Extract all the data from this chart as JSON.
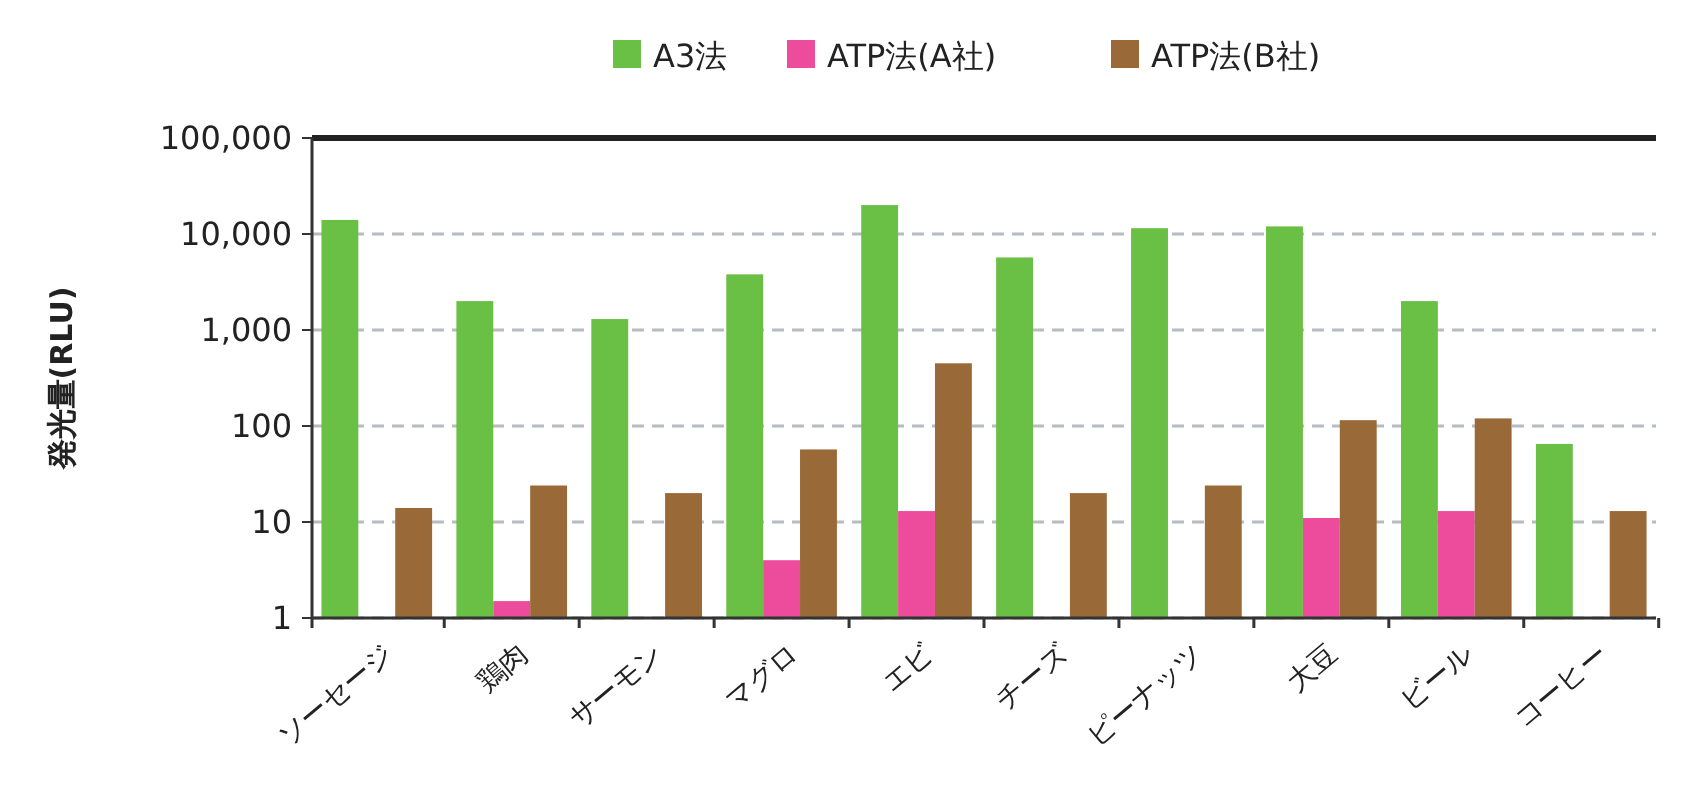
{
  "chart_data": {
    "type": "bar",
    "ylabel": "発光量(RLU)",
    "log": true,
    "grid": "y",
    "legend": "top",
    "categories": [
      "ソーセージ",
      "鶏肉",
      "サーモン",
      "マグロ",
      "エビ",
      "チーズ",
      "ピーナッツ",
      "大豆",
      "ビール",
      "コーヒー"
    ],
    "ylim": [
      1,
      100000
    ],
    "yticks": [
      1,
      10,
      {
        "value": 100,
        "label": "100"
      },
      {
        "value": 1000,
        "label": "1,000"
      },
      {
        "value": 10000,
        "label": "10,000"
      },
      {
        "value": 100000,
        "label": "100,000"
      }
    ],
    "series": [
      {
        "name": "A3法",
        "color": "#6abf45",
        "values": [
          14000,
          2000,
          1300,
          3800,
          20000,
          5700,
          11500,
          12000,
          2000,
          65
        ]
      },
      {
        "name": "ATP法(A社)",
        "color": "#ec4c9b",
        "values": [
          null,
          1.5,
          null,
          4,
          13,
          null,
          null,
          11,
          13,
          null
        ]
      },
      {
        "name": "ATP法(B社)",
        "color": "#9a6938",
        "values": [
          14,
          24,
          20,
          57,
          450,
          20,
          24,
          115,
          120,
          13
        ]
      }
    ]
  }
}
